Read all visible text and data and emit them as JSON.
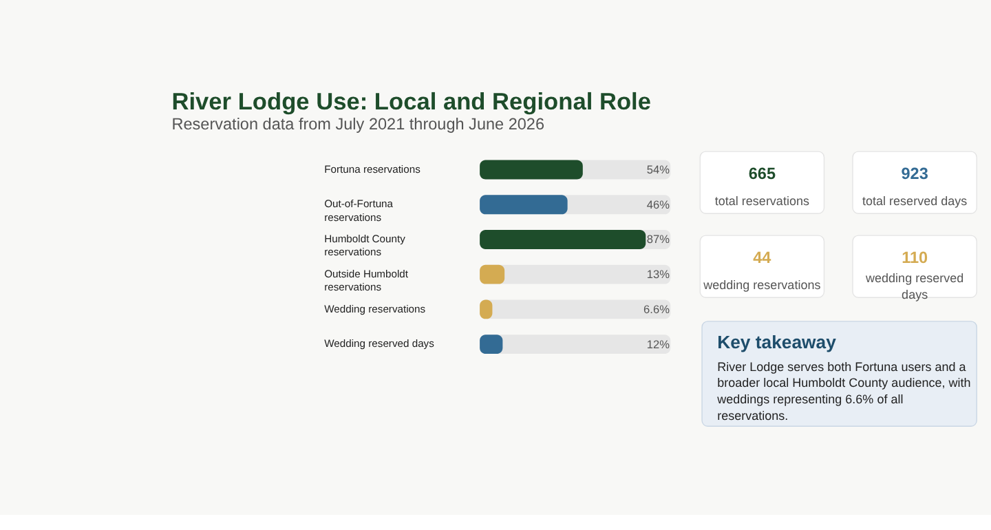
{
  "chart_data": [
    {
      "type": "bar",
      "orientation": "horizontal",
      "title": "River Lodge Use: Local and Regional Role",
      "subtitle": "Reservation data from July 2021 through June 2026",
      "categories": [
        "Fortuna reservations",
        "Out-of-Fortuna reservations",
        "Humboldt County reservations",
        "Outside Humboldt reservations",
        "Wedding reservations",
        "Wedding reserved days"
      ],
      "values": [
        54,
        46,
        87,
        13,
        6.6,
        12
      ],
      "colors": [
        "#1e4d2b",
        "#336b94",
        "#1e4d2b",
        "#d4ab52",
        "#d4ab52",
        "#336b94"
      ],
      "value_labels": [
        "54%",
        "46%",
        "87%",
        "13%",
        "6.6%",
        "12%"
      ],
      "xlim": [
        0,
        100
      ],
      "tick_labels": "y"
    },
    {
      "type": "other",
      "annotations": [
        "665",
        "total reservations",
        "923",
        "total reserved days",
        "44",
        "wedding reservations",
        "110",
        "wedding reserved days"
      ],
      "colors": [
        "#1e4d2b",
        "#336b94",
        "#d4ab52",
        "#d4ab52"
      ]
    },
    {
      "type": "other",
      "title": "Key takeaway",
      "annotations": [
        "River Lodge serves both Fortuna users and a broader local Humboldt County audience, with weddings representing 6.6% of all reservations."
      ]
    }
  ]
}
